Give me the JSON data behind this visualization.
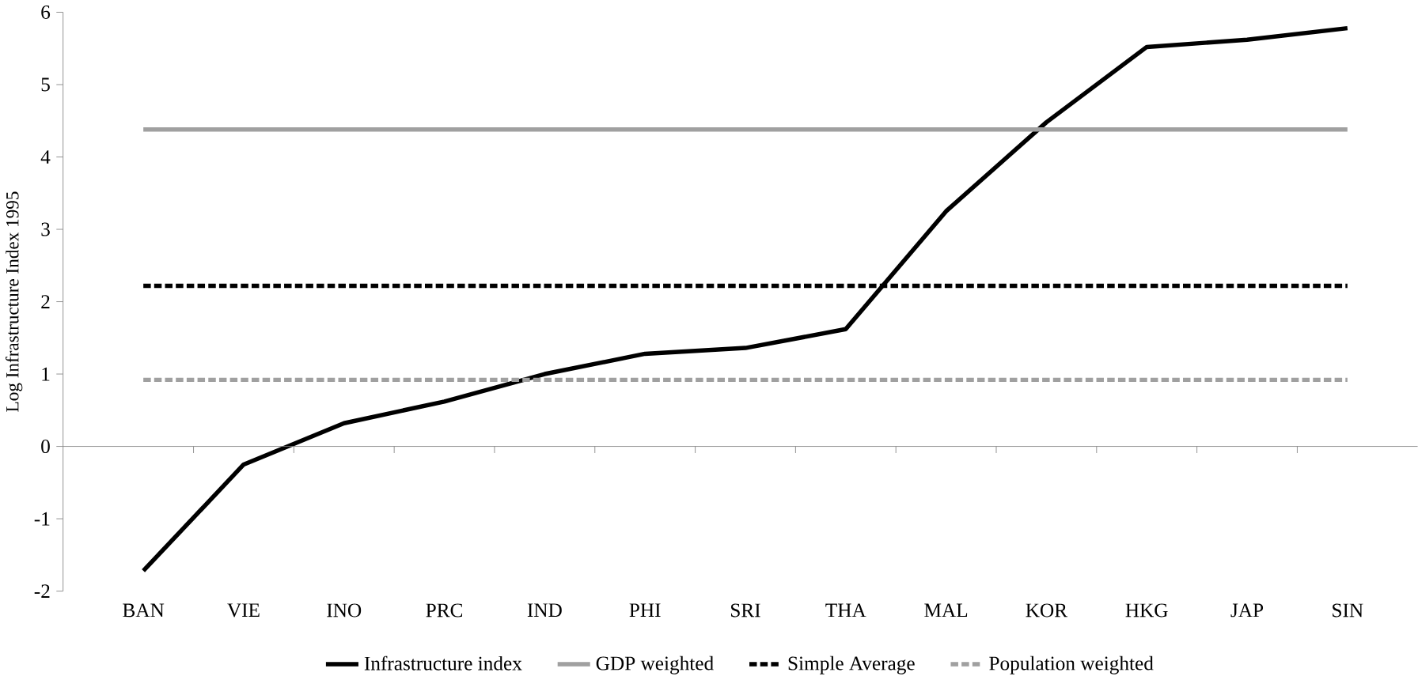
{
  "chart_data": {
    "type": "line",
    "ylabel": "Log Infrastructure Index 1995",
    "categories": [
      "BAN",
      "VIE",
      "INO",
      "PRC",
      "IND",
      "PHI",
      "SRI",
      "THA",
      "MAL",
      "KOR",
      "HKG",
      "JAP",
      "SIN"
    ],
    "series": [
      {
        "name": "Infrastructure index",
        "color": "#000000",
        "line_style": "solid",
        "values": [
          -1.72,
          -0.25,
          0.32,
          0.62,
          1.0,
          1.28,
          1.36,
          1.62,
          3.25,
          4.48,
          5.52,
          5.62,
          5.78
        ]
      },
      {
        "name": "GDP weighted",
        "color": "#a0a0a0",
        "line_style": "solid",
        "values": [
          4.38,
          4.38,
          4.38,
          4.38,
          4.38,
          4.38,
          4.38,
          4.38,
          4.38,
          4.38,
          4.38,
          4.38,
          4.38
        ]
      },
      {
        "name": "Simple Average",
        "color": "#000000",
        "line_style": "dashed",
        "values": [
          2.22,
          2.22,
          2.22,
          2.22,
          2.22,
          2.22,
          2.22,
          2.22,
          2.22,
          2.22,
          2.22,
          2.22,
          2.22
        ]
      },
      {
        "name": "Population weighted",
        "color": "#a0a0a0",
        "line_style": "dashed",
        "values": [
          0.92,
          0.92,
          0.92,
          0.92,
          0.92,
          0.92,
          0.92,
          0.92,
          0.92,
          0.92,
          0.92,
          0.92,
          0.92
        ]
      }
    ],
    "ylim": [
      -2,
      6
    ],
    "yticks": [
      -2,
      -1,
      0,
      1,
      2,
      3,
      4,
      5,
      6
    ],
    "legend": "bottom"
  }
}
